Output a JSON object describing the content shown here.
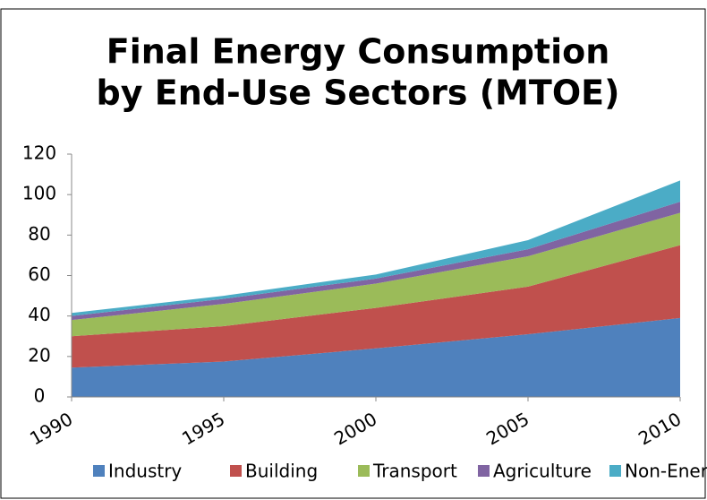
{
  "chart_data": {
    "type": "stacked_area",
    "title": [
      "Final Energy Consumption",
      "by End-Use Sectors (MTOE)"
    ],
    "categories": [
      "1990",
      "1995",
      "2000",
      "2005",
      "2010"
    ],
    "series": [
      {
        "name": "Industry",
        "color": "#4f81bd",
        "values": [
          14.5,
          17.5,
          24,
          31,
          39
        ]
      },
      {
        "name": "Building",
        "color": "#c0504d",
        "values": [
          15.5,
          17.5,
          20,
          23.5,
          36
        ]
      },
      {
        "name": "Transport",
        "color": "#9bbb59",
        "values": [
          8,
          11,
          12,
          15,
          16
        ]
      },
      {
        "name": "Agriculture",
        "color": "#8064a2",
        "values": [
          2,
          2.5,
          2.5,
          3.5,
          5.5
        ]
      },
      {
        "name": "Non-Energy",
        "color": "#4bacc6",
        "values": [
          1.5,
          1.5,
          2,
          4.5,
          10.5
        ]
      }
    ],
    "ylim": [
      0,
      120
    ],
    "yticks": [
      0,
      20,
      40,
      60,
      80,
      100,
      120
    ],
    "grid": false,
    "legend": "bottom"
  }
}
